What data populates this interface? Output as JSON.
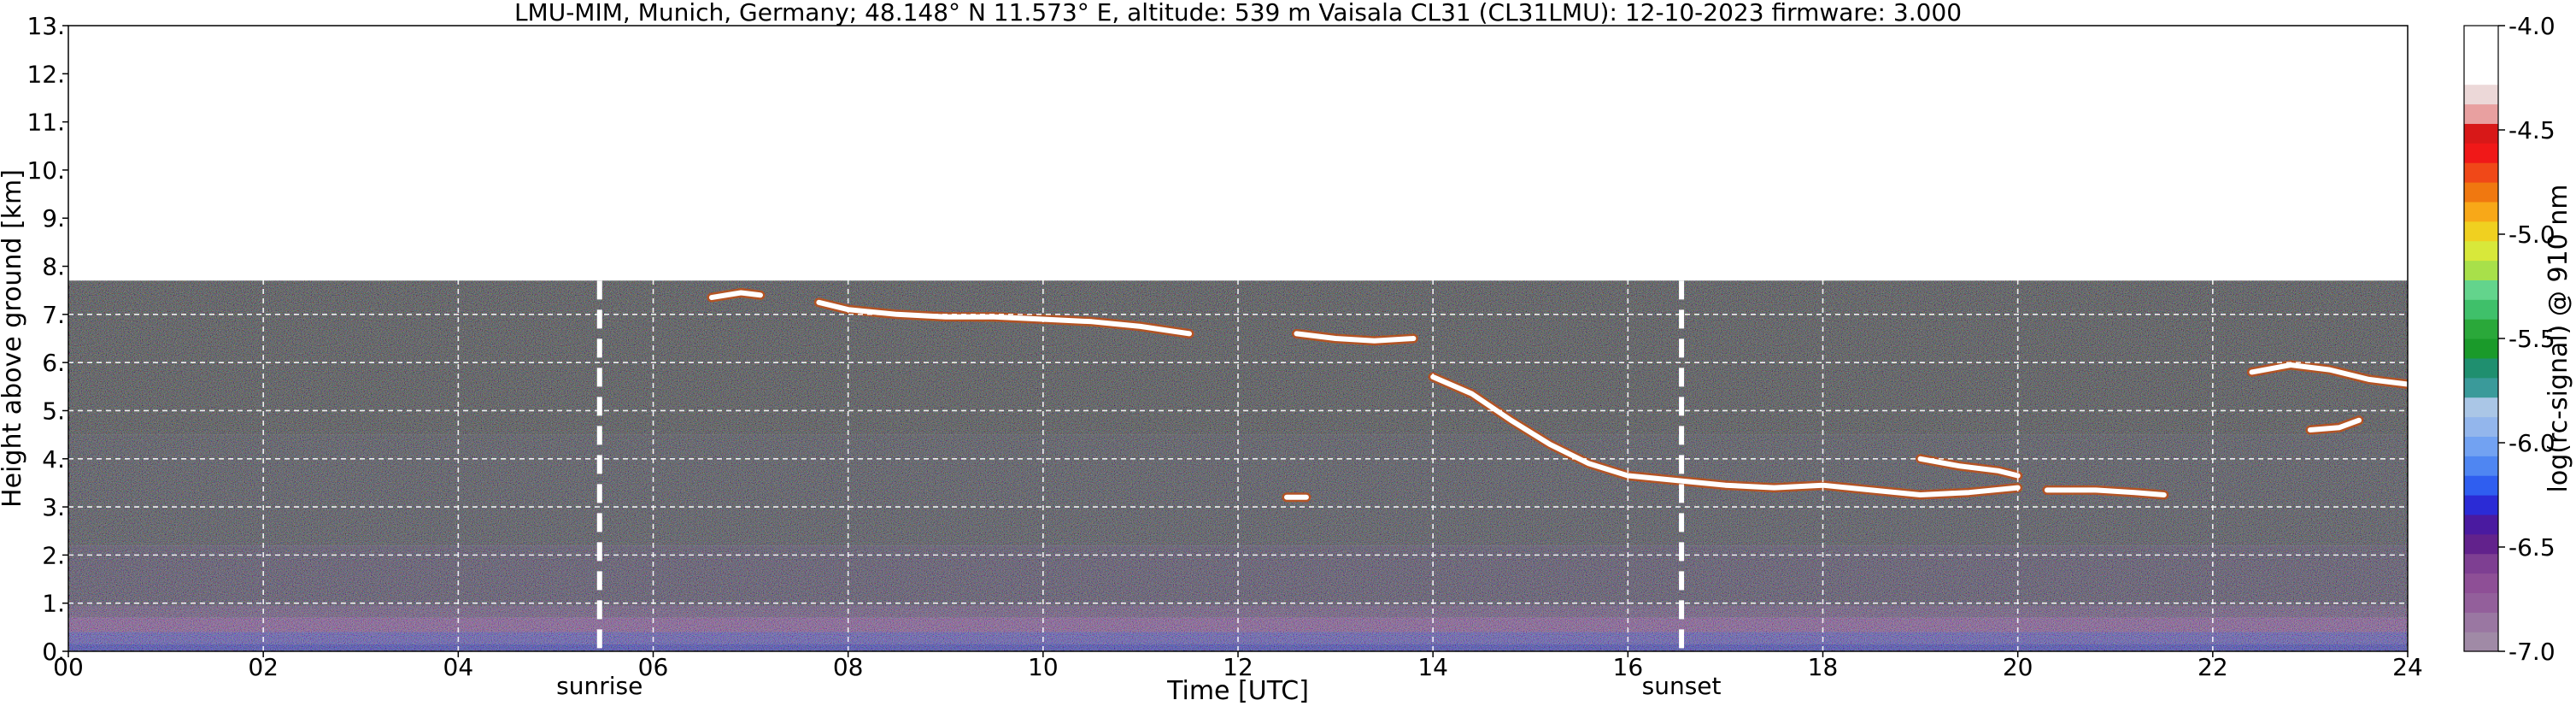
{
  "chart_data": {
    "type": "heatmap",
    "title": "LMU-MIM, Munich, Germany; 48.148° N 11.573° E, altitude: 539 m    Vaisala CL31 (CL31LMU): 12-10-2023    firmware: 3.000",
    "xlabel": "Time [UTC]",
    "ylabel": "Height above ground [km]",
    "colorbar_label": "log(rc-signal) @ 910 nm",
    "xlim": [
      0,
      24
    ],
    "ylim": [
      0,
      13
    ],
    "x_ticks": [
      0,
      2,
      4,
      6,
      8,
      10,
      12,
      14,
      16,
      18,
      20,
      22,
      24
    ],
    "x_tick_labels": [
      "00",
      "02",
      "04",
      "06",
      "08",
      "10",
      "12",
      "14",
      "16",
      "18",
      "20",
      "22",
      "24"
    ],
    "y_ticks": [
      0,
      1,
      2,
      3,
      4,
      5,
      6,
      7,
      8,
      9,
      10,
      11,
      12,
      13
    ],
    "y_tick_labels": [
      "0.",
      "1.",
      "2.",
      "3.",
      "4.",
      "5.",
      "6.",
      "7.",
      "8.",
      "9.",
      "10.",
      "11.",
      "12.",
      "13."
    ],
    "grid": true,
    "colorbar_range": [
      -7.0,
      -4.0
    ],
    "colorbar_ticks": [
      -7.0,
      -6.5,
      -6.0,
      -5.5,
      -5.0,
      -4.5,
      -4.0
    ],
    "colorbar_tick_labels": [
      "-7.0",
      "-6.5",
      "-6.0",
      "-5.5",
      "-5.0",
      "-4.5",
      "-4.0"
    ],
    "colorbar_colors": [
      "#a08aa6",
      "#9a77a2",
      "#935f9b",
      "#8e4f96",
      "#7e3f92",
      "#62228c",
      "#4a1aa0",
      "#2b2bd6",
      "#2f5ef0",
      "#4f86f2",
      "#72a2f2",
      "#93b6ec",
      "#aac6e6",
      "#3a9a9a",
      "#1f8f6f",
      "#1a9a2a",
      "#2aa83a",
      "#3fc06a",
      "#63d48c",
      "#a8e04a",
      "#d8e83a",
      "#f0d020",
      "#f8a818",
      "#f07810",
      "#f04818",
      "#f01818",
      "#d81818",
      "#e8a0a0",
      "#ecd8d8",
      "#ffffff",
      "#ffffff",
      "#ffffff"
    ],
    "max_range_km": 7.7,
    "markers": [
      {
        "label": "sunrise",
        "x": 5.45
      },
      {
        "label": "sunset",
        "x": 16.55
      }
    ],
    "cloud_layers": [
      {
        "points": [
          [
            6.6,
            7.35
          ],
          [
            6.9,
            7.45
          ],
          [
            7.1,
            7.4
          ]
        ]
      },
      {
        "points": [
          [
            7.7,
            7.25
          ],
          [
            8.0,
            7.1
          ],
          [
            8.5,
            7.0
          ],
          [
            9.0,
            6.95
          ],
          [
            9.5,
            6.95
          ],
          [
            10.0,
            6.9
          ],
          [
            10.5,
            6.85
          ],
          [
            11.0,
            6.75
          ],
          [
            11.5,
            6.6
          ]
        ]
      },
      {
        "points": [
          [
            12.6,
            6.6
          ],
          [
            13.0,
            6.5
          ],
          [
            13.4,
            6.45
          ],
          [
            13.8,
            6.5
          ]
        ]
      },
      {
        "points": [
          [
            14.0,
            5.7
          ],
          [
            14.4,
            5.35
          ],
          [
            14.8,
            4.8
          ],
          [
            15.2,
            4.3
          ],
          [
            15.6,
            3.9
          ],
          [
            16.0,
            3.65
          ],
          [
            16.5,
            3.55
          ],
          [
            17.0,
            3.45
          ],
          [
            17.5,
            3.4
          ],
          [
            18.0,
            3.45
          ],
          [
            18.5,
            3.35
          ],
          [
            19.0,
            3.25
          ],
          [
            19.5,
            3.3
          ],
          [
            20.0,
            3.4
          ]
        ]
      },
      {
        "points": [
          [
            19.0,
            4.0
          ],
          [
            19.4,
            3.85
          ],
          [
            19.8,
            3.75
          ],
          [
            20.0,
            3.65
          ]
        ]
      },
      {
        "points": [
          [
            20.3,
            3.35
          ],
          [
            20.8,
            3.35
          ],
          [
            21.2,
            3.3
          ],
          [
            21.5,
            3.25
          ]
        ]
      },
      {
        "points": [
          [
            22.4,
            5.8
          ],
          [
            22.8,
            5.95
          ],
          [
            23.2,
            5.85
          ],
          [
            23.6,
            5.65
          ],
          [
            24.0,
            5.55
          ]
        ]
      },
      {
        "points": [
          [
            23.0,
            4.6
          ],
          [
            23.3,
            4.65
          ],
          [
            23.5,
            4.8
          ]
        ]
      },
      {
        "points": [
          [
            12.5,
            3.2
          ],
          [
            12.7,
            3.2
          ]
        ]
      }
    ],
    "background_layers": [
      {
        "y0": 0.0,
        "y1": 0.15,
        "color": "#2222c8"
      },
      {
        "y0": 0.15,
        "y1": 0.4,
        "color": "#4a3cc4"
      },
      {
        "y0": 0.4,
        "y1": 0.7,
        "color": "#7d3f9a"
      },
      {
        "y0": 0.7,
        "y1": 0.95,
        "color": "#5a3a78"
      },
      {
        "y0": 0.95,
        "y1": 2.2,
        "color": "#3a2f55"
      },
      {
        "y0": 2.2,
        "y1": 4.5,
        "color": "#2f3040"
      },
      {
        "y0": 4.5,
        "y1": 7.7,
        "color": "#2a2c33"
      }
    ]
  }
}
